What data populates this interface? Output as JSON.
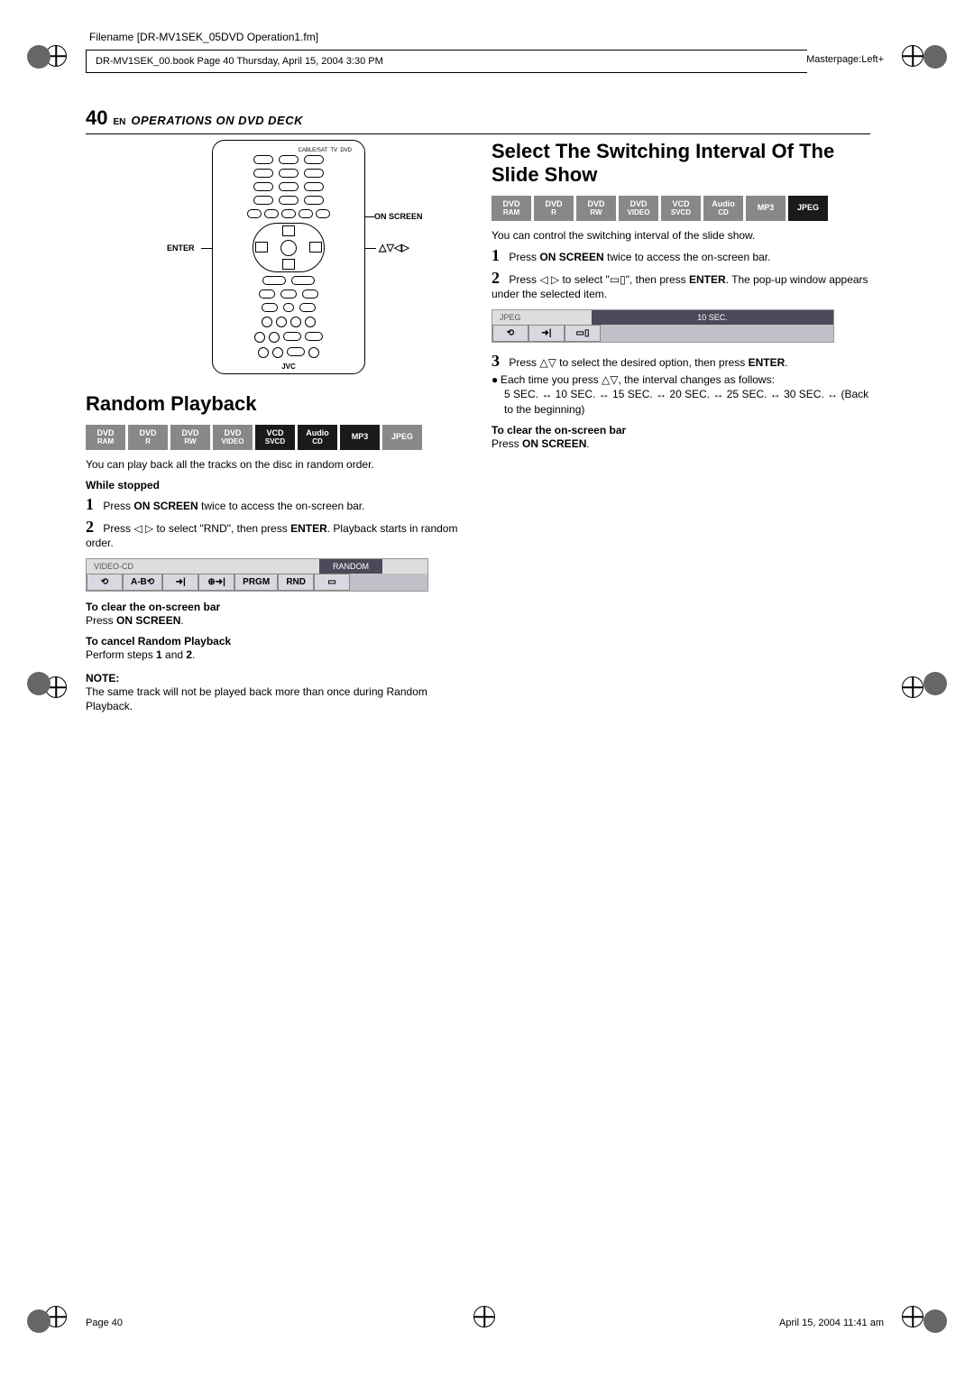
{
  "meta": {
    "filename": "Filename [DR-MV1SEK_05DVD Operation1.fm]",
    "bookline": "DR-MV1SEK_00.book  Page 40  Thursday, April 15, 2004  3:30 PM",
    "masterpage": "Masterpage:Left+"
  },
  "header": {
    "pageNum": "40",
    "en": "EN",
    "title": "OPERATIONS ON DVD DECK"
  },
  "remote": {
    "labelCableSat": "CABLE/SAT",
    "labelTv": "TV",
    "labelDvd": "DVD",
    "labelOnScreen": "ON SCREEN",
    "labelEnter": "ENTER",
    "labelArrows": "△▽◁▷",
    "brand": "JVC"
  },
  "random": {
    "title": "Random Playback",
    "badges": [
      {
        "t1": "DVD",
        "t2": "RAM",
        "active": false
      },
      {
        "t1": "DVD",
        "t2": "R",
        "active": false
      },
      {
        "t1": "DVD",
        "t2": "RW",
        "active": false
      },
      {
        "t1": "DVD",
        "t2": "VIDEO",
        "active": false
      },
      {
        "t1": "VCD",
        "t2": "SVCD",
        "active": true
      },
      {
        "t1": "Audio",
        "t2": "CD",
        "active": true
      },
      {
        "t1": "MP3",
        "t2": "",
        "active": true
      },
      {
        "t1": "JPEG",
        "t2": "",
        "active": false
      }
    ],
    "intro": "You can play back all the tracks on the disc in random order.",
    "whileStopped": "While stopped",
    "step1": "Press ON SCREEN twice to access the on-screen bar.",
    "step1_b1": "ON SCREEN",
    "step2_a": "Press ◁ ▷ to select \"RND\", then press ",
    "step2_b1": "ENTER",
    "step2_b": ". Playback starts in random order.",
    "osd": {
      "headerLeft": "VIDEO-CD",
      "headerRight": "RANDOM",
      "cells": [
        "⟲",
        "A-B⟲",
        "➜|",
        "⊕➜|",
        "PRGM",
        "RND",
        "▭"
      ]
    },
    "clearTitle": "To clear the on-screen bar",
    "clearBody": "Press ON SCREEN.",
    "clearBody_b": "ON SCREEN",
    "cancelTitle": "To cancel Random Playback",
    "cancelBody": "Perform steps 1 and 2.",
    "noteTitle": "NOTE:",
    "noteBody": "The same track will not be played back more than once during Random Playback."
  },
  "slide": {
    "title": "Select The Switching Interval Of The Slide Show",
    "badges": [
      {
        "t1": "DVD",
        "t2": "RAM",
        "active": false
      },
      {
        "t1": "DVD",
        "t2": "R",
        "active": false
      },
      {
        "t1": "DVD",
        "t2": "RW",
        "active": false
      },
      {
        "t1": "DVD",
        "t2": "VIDEO",
        "active": false
      },
      {
        "t1": "VCD",
        "t2": "SVCD",
        "active": false
      },
      {
        "t1": "Audio",
        "t2": "CD",
        "active": false
      },
      {
        "t1": "MP3",
        "t2": "",
        "active": false
      },
      {
        "t1": "JPEG",
        "t2": "",
        "active": true
      }
    ],
    "intro": "You can control the switching interval of the slide show.",
    "step1": "Press ON SCREEN twice to access the on-screen bar.",
    "step2_a": "Press ◁ ▷ to select \"▭▯\", then press ",
    "step2_b1": "ENTER",
    "step2_b": ". The pop-up window appears under the selected item.",
    "osd": {
      "headerLeft": "JPEG",
      "headerRight": "10 SEC.",
      "cells": [
        "⟲",
        "➜|",
        "▭▯"
      ]
    },
    "step3_a": "Press △▽ to select the desired option, then press ",
    "step3_b1": "ENTER",
    "step3_b": ".",
    "bullet1": "Each time you press △▽, the interval changes as follows:",
    "seq": "5 SEC. ↔ 10 SEC. ↔ 15 SEC. ↔ 20 SEC. ↔ 25 SEC. ↔ 30 SEC. ↔ (Back to the beginning)",
    "clearTitle": "To clear the on-screen bar",
    "clearBody": "Press ON SCREEN."
  },
  "footer": {
    "left": "Page 40",
    "right": "April 15, 2004 11:41 am"
  }
}
